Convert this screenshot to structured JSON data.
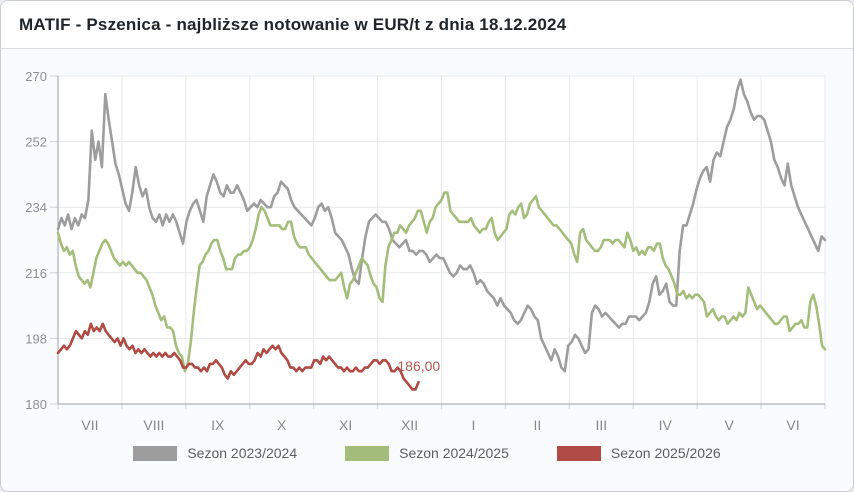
{
  "header": {
    "title": "MATIF - Pszenica - najbliższe notowanie w EUR/t z dnia 18.12.2024"
  },
  "chart_data": {
    "type": "line",
    "title": "MATIF - Pszenica - najbliższe notowanie w EUR/t z dnia 18.12.2024",
    "xlabel": "",
    "ylabel": "",
    "unit": "EUR/t",
    "grid": true,
    "legend_position": "bottom",
    "ylim": [
      180,
      270
    ],
    "y_ticks": [
      270,
      252,
      234,
      216,
      198,
      180
    ],
    "x_labels": [
      "VII",
      "VIII",
      "IX",
      "X",
      "XI",
      "XII",
      "I",
      "II",
      "III",
      "IV",
      "V",
      "VI"
    ],
    "annotation": {
      "text": "186,00",
      "x_month": 5.31,
      "value": 189,
      "color": "#b05a52"
    },
    "series": [
      {
        "name": "Sezon 2023/2024",
        "color": "#9d9d9d",
        "x_start": 0,
        "x_end": 12,
        "values": [
          228,
          231,
          229,
          232,
          228,
          231,
          229,
          232,
          231,
          236,
          255,
          247,
          252,
          245,
          265,
          258,
          252,
          246,
          243,
          239,
          235,
          233,
          238,
          245,
          240,
          237,
          239,
          234,
          231,
          230,
          232,
          229,
          232,
          230,
          232,
          230,
          227,
          224,
          230,
          233,
          235,
          236,
          233,
          230,
          237,
          240,
          243,
          241,
          238,
          237,
          240,
          238,
          238,
          240,
          238,
          236,
          233,
          234,
          235,
          234,
          236,
          235,
          234,
          234,
          237,
          238,
          241,
          240,
          239,
          236,
          234,
          233,
          232,
          231,
          230,
          229,
          231,
          234,
          235,
          233,
          234,
          231,
          227,
          226,
          225,
          223,
          221,
          217,
          214,
          213,
          220,
          226,
          230,
          231,
          232,
          231,
          230,
          230,
          228,
          225,
          224,
          223,
          224,
          225,
          222,
          222,
          221,
          222,
          222,
          221,
          219,
          220,
          221,
          220,
          220,
          218,
          216,
          215,
          216,
          218,
          217,
          217,
          218,
          216,
          213,
          214,
          213,
          211,
          210,
          209,
          207,
          209,
          207,
          206,
          205,
          203,
          202,
          203,
          205,
          207,
          206,
          204,
          203,
          198,
          196,
          194,
          192,
          195,
          193,
          190,
          189,
          196,
          197,
          199,
          198,
          196,
          194,
          195,
          205,
          207,
          206,
          204,
          205,
          204,
          203,
          202,
          201,
          202,
          202,
          204,
          204,
          204,
          203,
          204,
          205,
          208,
          213,
          215,
          210,
          211,
          213,
          208,
          207,
          207,
          222,
          229,
          229,
          232,
          235,
          239,
          242,
          244,
          245,
          241,
          247,
          249,
          248,
          252,
          256,
          258,
          261,
          266,
          269,
          265,
          263,
          260,
          258,
          259,
          259,
          258,
          255,
          252,
          247,
          245,
          242,
          240,
          246,
          240,
          237,
          234,
          232,
          230,
          228,
          226,
          224,
          222,
          226,
          225
        ]
      },
      {
        "name": "Sezon 2024/2025",
        "color": "#a4bd7a",
        "x_start": 0,
        "x_end": 12,
        "values": [
          227,
          224,
          222,
          223,
          221,
          222,
          218,
          215,
          214,
          213,
          214,
          212,
          216,
          220,
          222,
          224,
          225,
          224,
          222,
          220,
          219,
          218,
          219,
          218,
          219,
          218,
          217,
          216,
          216,
          215,
          214,
          212,
          210,
          207,
          205,
          203,
          204,
          201,
          201,
          200,
          196,
          194,
          193,
          189,
          191,
          197,
          205,
          212,
          218,
          219,
          221,
          222,
          224,
          225,
          225,
          222,
          220,
          217,
          217,
          217,
          220,
          221,
          221,
          222,
          222,
          223,
          225,
          228,
          232,
          234,
          233,
          231,
          229,
          229,
          229,
          229,
          228,
          228,
          230,
          230,
          226,
          224,
          223,
          223,
          223,
          221,
          220,
          219,
          218,
          217,
          216,
          215,
          214,
          214,
          214,
          215,
          216,
          212,
          209,
          213,
          214,
          216,
          218,
          220,
          219,
          218,
          215,
          213,
          212,
          209,
          208,
          218,
          223,
          225,
          227,
          227,
          229,
          228,
          227,
          229,
          230,
          231,
          233,
          233,
          230,
          227,
          230,
          231,
          234,
          235,
          236,
          238,
          238,
          233,
          232,
          231,
          230,
          230,
          230,
          230,
          231,
          229,
          228,
          227,
          228,
          228,
          230,
          231,
          227,
          225,
          226,
          227,
          228,
          232,
          233,
          232,
          234,
          235,
          231,
          232,
          235,
          236,
          237,
          234,
          233,
          232,
          231,
          230,
          229,
          229,
          228,
          227,
          226,
          225,
          224,
          221,
          219,
          227,
          228,
          225,
          224,
          223,
          222,
          222,
          223,
          225,
          225,
          225,
          224,
          225,
          225,
          224,
          223,
          227,
          225,
          222,
          223,
          221,
          222,
          221,
          223,
          223,
          222,
          224,
          224,
          220,
          218,
          217,
          215,
          213,
          210,
          210,
          211,
          209,
          210,
          209,
          210,
          210,
          209,
          208,
          204,
          205,
          206,
          204,
          203,
          204,
          204,
          202,
          203,
          204,
          203,
          205,
          204,
          205,
          212,
          210,
          208,
          206,
          207,
          206,
          205,
          204,
          203,
          202,
          202,
          203,
          204,
          204,
          200,
          201,
          202,
          202,
          203,
          201,
          201,
          208,
          210,
          207,
          202,
          196,
          195
        ]
      },
      {
        "name": "Sezon 2025/2026",
        "color": "#af4a44",
        "x_start": 0,
        "x_end": 5.64,
        "values": [
          194,
          195,
          196,
          195,
          196,
          198,
          200,
          199,
          198,
          200,
          199,
          202,
          200,
          201,
          200,
          202,
          200,
          199,
          198,
          197,
          198,
          196,
          198,
          196,
          195,
          196,
          194,
          195,
          194,
          195,
          194,
          193,
          194,
          193,
          194,
          193,
          194,
          193,
          193,
          194,
          193,
          192,
          190,
          190,
          191,
          191,
          190,
          190,
          189,
          190,
          189,
          191,
          191,
          192,
          191,
          190,
          188,
          187,
          189,
          188,
          189,
          190,
          191,
          192,
          191,
          191,
          192,
          194,
          193,
          195,
          194,
          195,
          196,
          195,
          196,
          194,
          193,
          192,
          190,
          190,
          189,
          190,
          189,
          190,
          190,
          190,
          192,
          192,
          191,
          193,
          192,
          193,
          192,
          191,
          190,
          190,
          189,
          190,
          189,
          189,
          190,
          189,
          189,
          190,
          190,
          191,
          192,
          192,
          191,
          192,
          192,
          191,
          189,
          189,
          190,
          189,
          187,
          186,
          185,
          184,
          184,
          186
        ]
      }
    ]
  }
}
